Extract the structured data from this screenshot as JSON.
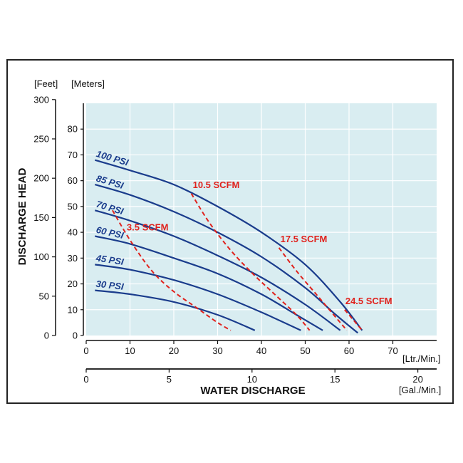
{
  "chart_data": {
    "type": "line",
    "title": "",
    "left_axis_feet": {
      "unit_label": "[Feet]",
      "ticks": [
        0,
        50,
        100,
        150,
        200,
        250,
        300
      ]
    },
    "left_axis_meters": {
      "unit_label": "[Meters]",
      "ticks": [
        0,
        10,
        20,
        30,
        40,
        50,
        60,
        70,
        80
      ],
      "range": [
        0,
        90
      ]
    },
    "ylabel": "DISCHARGE HEAD",
    "x_axis_lpm": {
      "unit_label": "[Ltr./Min.]",
      "ticks": [
        0,
        10,
        20,
        30,
        40,
        50,
        60,
        70
      ],
      "range": [
        0,
        80
      ]
    },
    "x_axis_gpm": {
      "unit_label": "[Gal./Min.]",
      "ticks": [
        0,
        5,
        10,
        15,
        20
      ]
    },
    "xlabel": "WATER DISCHARGE",
    "grid": true,
    "colors": {
      "plot_bg": "#d9edf1",
      "psi_curves": "#1a3c8c",
      "scfm_curves": "#e0221d",
      "grid": "#ffffff"
    },
    "pressure_curves": [
      {
        "label": "100 PSI",
        "points": [
          [
            2,
            68
          ],
          [
            10,
            64
          ],
          [
            20,
            58.5
          ],
          [
            30,
            50
          ],
          [
            40,
            40
          ],
          [
            50,
            27.5
          ],
          [
            58,
            13
          ],
          [
            63,
            2
          ]
        ]
      },
      {
        "label": "85 PSI",
        "points": [
          [
            2,
            58.5
          ],
          [
            10,
            54.5
          ],
          [
            20,
            48
          ],
          [
            30,
            40
          ],
          [
            40,
            30.5
          ],
          [
            50,
            18.5
          ],
          [
            57,
            8
          ],
          [
            62,
            1
          ]
        ]
      },
      {
        "label": "70 PSI",
        "points": [
          [
            2,
            48.5
          ],
          [
            10,
            44.5
          ],
          [
            20,
            38.5
          ],
          [
            30,
            31
          ],
          [
            40,
            22.5
          ],
          [
            50,
            12
          ],
          [
            58,
            2
          ]
        ]
      },
      {
        "label": "60 PSI",
        "points": [
          [
            2,
            38.5
          ],
          [
            10,
            35.5
          ],
          [
            20,
            30
          ],
          [
            30,
            24
          ],
          [
            40,
            16
          ],
          [
            48,
            8
          ],
          [
            54,
            2
          ]
        ]
      },
      {
        "label": "45 PSI",
        "points": [
          [
            2,
            27.5
          ],
          [
            10,
            25.5
          ],
          [
            20,
            21.5
          ],
          [
            30,
            16
          ],
          [
            40,
            9
          ],
          [
            49,
            2
          ]
        ]
      },
      {
        "label": "30 PSI",
        "points": [
          [
            2,
            17.5
          ],
          [
            10,
            16
          ],
          [
            20,
            13
          ],
          [
            30,
            8
          ],
          [
            38.5,
            2
          ]
        ]
      }
    ],
    "air_consumption_curves": [
      {
        "label": "3.5 SCFM",
        "points": [
          [
            6,
            48.5
          ],
          [
            10,
            37
          ],
          [
            15,
            25
          ],
          [
            20,
            17
          ],
          [
            25,
            11
          ],
          [
            30,
            5
          ],
          [
            33,
            2
          ]
        ]
      },
      {
        "label": "10.5 SCFM",
        "points": [
          [
            24,
            55
          ],
          [
            28,
            44
          ],
          [
            33,
            33
          ],
          [
            38,
            24
          ],
          [
            43,
            16
          ],
          [
            48,
            8
          ],
          [
            51,
            2
          ]
        ]
      },
      {
        "label": "17.5 SCFM",
        "points": [
          [
            44,
            34
          ],
          [
            48,
            25
          ],
          [
            52,
            17
          ],
          [
            55,
            11
          ],
          [
            58,
            5
          ],
          [
            59.5,
            2
          ]
        ]
      },
      {
        "label": "24.5 SCFM",
        "points": [
          [
            59,
            10
          ],
          [
            61.5,
            5
          ],
          [
            63,
            2
          ]
        ]
      }
    ]
  }
}
